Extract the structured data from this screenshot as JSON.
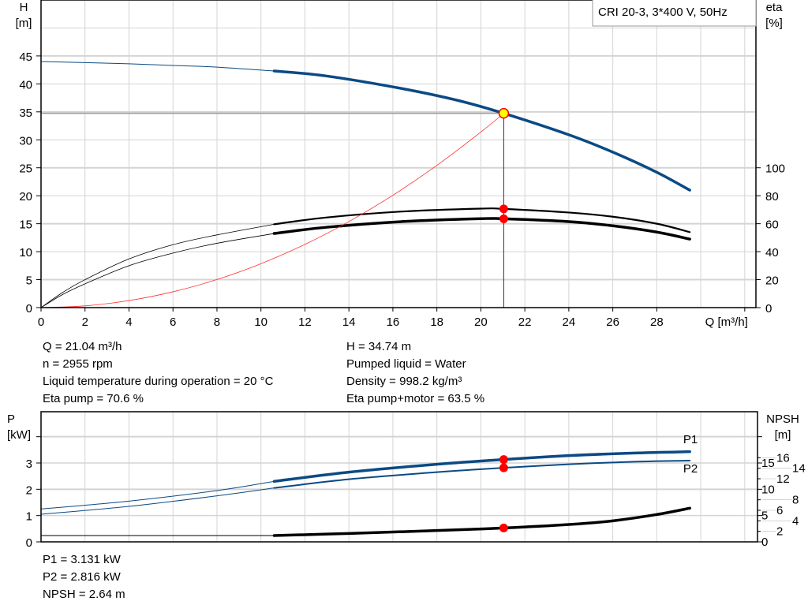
{
  "legend_box": "CRI 20-3, 3*400 V, 50Hz",
  "colors": {
    "head": "#0b4a84",
    "eta": "#000000",
    "system": "#ff3030",
    "marker": "#ff0000",
    "duty_point": "#ffff00",
    "power": "#0b4a84",
    "npsh": "#000000",
    "grid": "#d4d4d4"
  },
  "chart_data": [
    {
      "type": "line",
      "xlabel": "Q [m³/h]",
      "ylabel": [
        "H",
        "[m]"
      ],
      "y2label": [
        "eta",
        "[%]"
      ],
      "xlim": [
        0,
        32
      ],
      "ylim": [
        0,
        55
      ],
      "y2lim": [
        0,
        220
      ],
      "xticks": [
        0,
        2,
        4,
        6,
        8,
        10,
        12,
        14,
        16,
        18,
        20,
        22,
        24,
        26,
        28
      ],
      "yticks": [
        0,
        5,
        10,
        15,
        20,
        25,
        30,
        35,
        40,
        45
      ],
      "y2ticks": [
        0,
        20,
        40,
        60,
        80,
        100
      ],
      "grid": true,
      "series": [
        {
          "key": "head",
          "axis": "y",
          "thick_from": 10.6,
          "x": [
            0,
            2,
            4,
            6,
            8,
            10.6,
            13,
            16.5,
            19,
            21.04,
            24,
            26,
            28,
            29.5
          ],
          "y": [
            44,
            43.8,
            43.6,
            43.3,
            43.0,
            42.3,
            41.4,
            39.1,
            37,
            34.74,
            30.9,
            27.8,
            24.2,
            21.0
          ]
        },
        {
          "key": "eta_pump",
          "axis": "y2",
          "thick_from": 10.6,
          "x": [
            0,
            1,
            2,
            4,
            6,
            8,
            10.6,
            13,
            16.5,
            20,
            21.04,
            24,
            26,
            28,
            29.5
          ],
          "y": [
            0,
            11,
            20,
            34.8,
            45,
            52,
            59.6,
            64.5,
            68.8,
            70.8,
            70.6,
            68,
            65,
            60,
            54
          ]
        },
        {
          "key": "eta_pump_motor",
          "axis": "y2",
          "thick_from": 10.6,
          "x": [
            0,
            1,
            2,
            4,
            6,
            8,
            10.6,
            13,
            16.5,
            20,
            21.04,
            24,
            26,
            28,
            29.5
          ],
          "y": [
            0,
            9.5,
            17,
            30,
            39,
            46,
            53,
            57.5,
            61.6,
            63.6,
            63.5,
            61.5,
            58.5,
            54,
            49
          ]
        },
        {
          "key": "system",
          "axis": "y",
          "x": [
            0,
            2,
            4,
            6,
            8,
            10,
            12,
            14,
            16,
            18,
            20,
            21.04
          ],
          "y": [
            0,
            0.31,
            1.26,
            2.83,
            5.02,
            7.85,
            11.3,
            15.38,
            20.09,
            25.43,
            31.39,
            34.74
          ]
        }
      ],
      "duty_point": {
        "Q": 21.04,
        "H": 34.74,
        "eta_pump": 70.6,
        "eta_pump_motor": 63.5
      }
    },
    {
      "type": "line",
      "ylabel": [
        "P",
        "[kW]"
      ],
      "y2label": [
        "NPSH",
        "[m]"
      ],
      "xlim": [
        0,
        32
      ],
      "ylim": [
        0,
        4.95
      ],
      "y2lim": [
        0,
        24.75
      ],
      "yticks": [
        0,
        1,
        2,
        3
      ],
      "y2ticks": [
        0,
        2,
        4,
        5,
        6,
        8,
        10,
        12,
        14,
        15,
        16
      ],
      "grid": true,
      "series": [
        {
          "key": "P1",
          "name": "P1",
          "axis": "y",
          "thick_from": 10.6,
          "x": [
            0,
            4,
            8,
            10.6,
            14,
            18,
            21.04,
            24,
            27,
            29.5
          ],
          "y": [
            1.25,
            1.55,
            1.95,
            2.3,
            2.65,
            2.95,
            3.131,
            3.28,
            3.38,
            3.43
          ]
        },
        {
          "key": "P2",
          "name": "P2",
          "axis": "y",
          "thick_from": 10.6,
          "x": [
            0,
            4,
            8,
            10.6,
            14,
            18,
            21.04,
            24,
            27,
            29.5
          ],
          "y": [
            1.05,
            1.35,
            1.75,
            2.05,
            2.38,
            2.65,
            2.816,
            2.95,
            3.05,
            3.09
          ]
        },
        {
          "key": "NPSH",
          "axis": "y2",
          "thick_from": 10.6,
          "x": [
            0,
            10.6,
            14,
            18,
            21.04,
            24,
            26,
            28,
            29.5
          ],
          "y": [
            1.2,
            1.2,
            1.6,
            2.15,
            2.64,
            3.3,
            4.0,
            5.2,
            6.4
          ]
        }
      ],
      "duty_point": {
        "Q": 21.04,
        "P1": 3.131,
        "P2": 2.816,
        "NPSH": 2.64
      }
    }
  ],
  "info_left": [
    "Q = 21.04 m³/h",
    "n = 2955 rpm",
    "Liquid temperature during operation = 20 °C",
    "Eta pump = 70.6 %"
  ],
  "info_right": [
    "H = 34.74 m",
    "Pumped liquid = Water",
    "Density = 998.2 kg/m³",
    "Eta pump+motor = 63.5 %"
  ],
  "info_bottom": [
    "P1 = 3.131 kW",
    "P2 = 2.816 kW",
    "NPSH = 2.64 m"
  ]
}
